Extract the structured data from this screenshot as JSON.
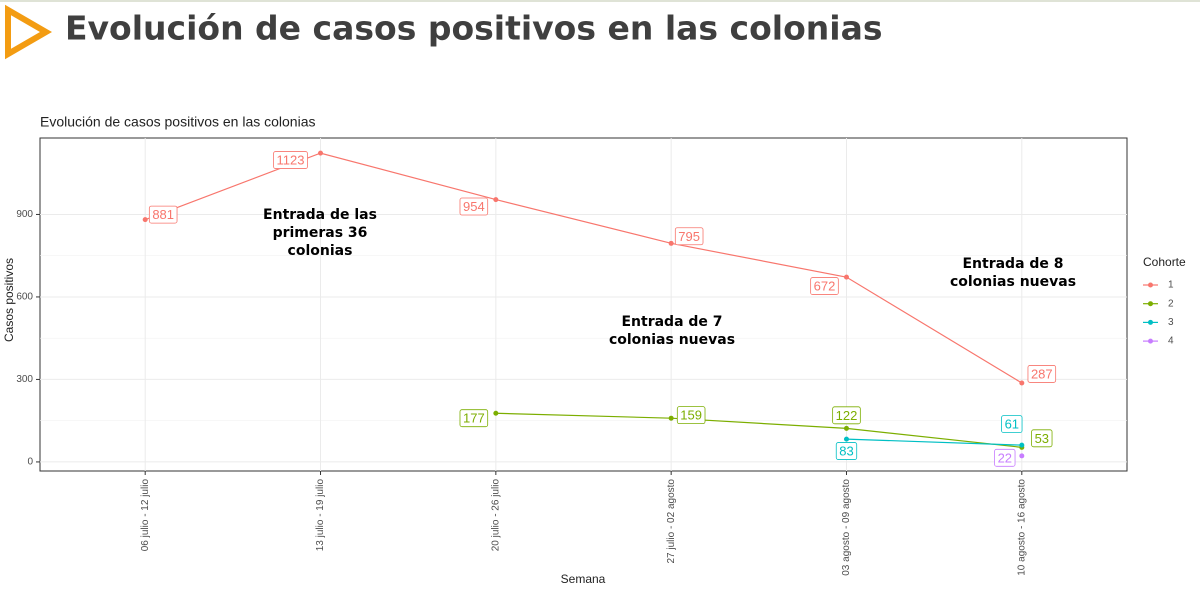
{
  "header": {
    "title": "Evolución de casos positivos en las colonias"
  },
  "chart_data": {
    "type": "line",
    "title": "Evolución de casos positivos en las colonias",
    "x_label": "Semana",
    "y_label": "Casos positivos",
    "categories": [
      "06 julio - 12 julio",
      "13 julio - 19 julio",
      "20 julio - 26 julio",
      "27 julio - 02 agosto",
      "03 agosto - 09 agosto",
      "10 agosto - 16 agosto"
    ],
    "series": [
      {
        "name": "1",
        "color": "#F8766D",
        "values": [
          881,
          1123,
          954,
          795,
          672,
          287
        ]
      },
      {
        "name": "2",
        "color": "#7CAE00",
        "values": [
          null,
          null,
          177,
          159,
          122,
          53
        ]
      },
      {
        "name": "3",
        "color": "#00BFC4",
        "values": [
          null,
          null,
          null,
          null,
          83,
          61
        ]
      },
      {
        "name": "4",
        "color": "#C77CFF",
        "values": [
          null,
          null,
          null,
          null,
          null,
          22
        ]
      }
    ],
    "ylim": [
      -33,
      1178
    ],
    "yticks": [
      0,
      300,
      600,
      900
    ],
    "grid": true,
    "legend_title": "Cohorte",
    "legend": "right",
    "annotations": [
      {
        "lines": [
          "Entrada de las",
          "primeras 36",
          "colonias"
        ]
      },
      {
        "lines": [
          "Entrada de  7",
          "colonias nuevas"
        ]
      },
      {
        "lines": [
          "Entrada de  8",
          "colonias nuevas"
        ]
      }
    ]
  }
}
